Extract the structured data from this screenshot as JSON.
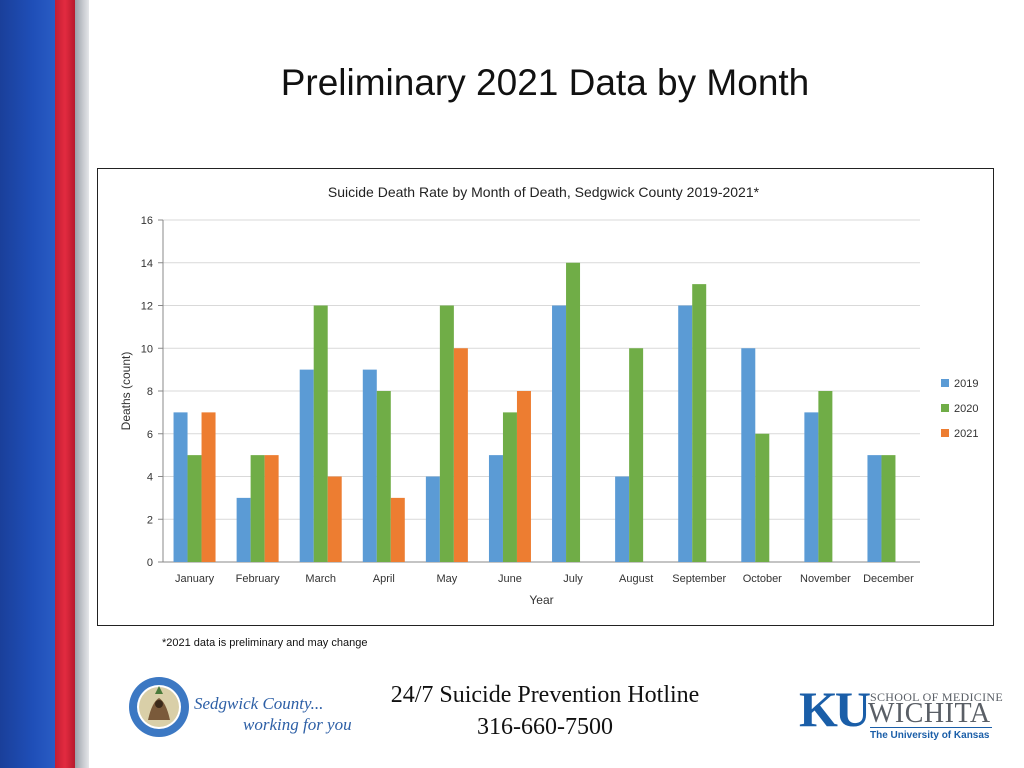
{
  "slide": {
    "title": "Preliminary 2021 Data by Month",
    "footnote": "*2021 data is preliminary and may change",
    "hotline_label": "24/7 Suicide Prevention Hotline",
    "hotline_number": "316-660-7500"
  },
  "logos": {
    "sedgwick_line1": "Sedgwick County...",
    "sedgwick_line2": "working for you",
    "sedgwick_seal_text": "SEDGWICK COUNTY KANSAS",
    "ku_mark": "KU",
    "ku_school": "SCHOOL OF MEDICINE",
    "ku_campus": "WICHITA",
    "ku_university": "The University of Kansas"
  },
  "colors": {
    "series_2019": "#5b9bd5",
    "series_2020": "#70ad47",
    "series_2021": "#ed7d31",
    "stripe_blue": "#1f4fb8",
    "stripe_red": "#e22b40",
    "ku_blue": "#1a5ea8"
  },
  "chart_data": {
    "type": "bar",
    "title": "Suicide Death Rate by Month of Death, Sedgwick County 2019-2021*",
    "xlabel": "Year",
    "ylabel": "Deaths (count)",
    "ylim": [
      0,
      16
    ],
    "yticks": [
      0,
      2,
      4,
      6,
      8,
      10,
      12,
      14,
      16
    ],
    "grid": true,
    "legend_position": "right",
    "categories": [
      "January",
      "February",
      "March",
      "April",
      "May",
      "June",
      "July",
      "August",
      "September",
      "October",
      "November",
      "December"
    ],
    "series": [
      {
        "name": "2019",
        "color": "#5b9bd5",
        "values": [
          7,
          3,
          9,
          9,
          4,
          5,
          12,
          4,
          12,
          10,
          7,
          5
        ]
      },
      {
        "name": "2020",
        "color": "#70ad47",
        "values": [
          5,
          5,
          12,
          8,
          12,
          7,
          14,
          10,
          13,
          6,
          8,
          5
        ]
      },
      {
        "name": "2021",
        "color": "#ed7d31",
        "values": [
          7,
          5,
          4,
          3,
          10,
          8,
          null,
          null,
          null,
          null,
          null,
          null
        ]
      }
    ]
  }
}
